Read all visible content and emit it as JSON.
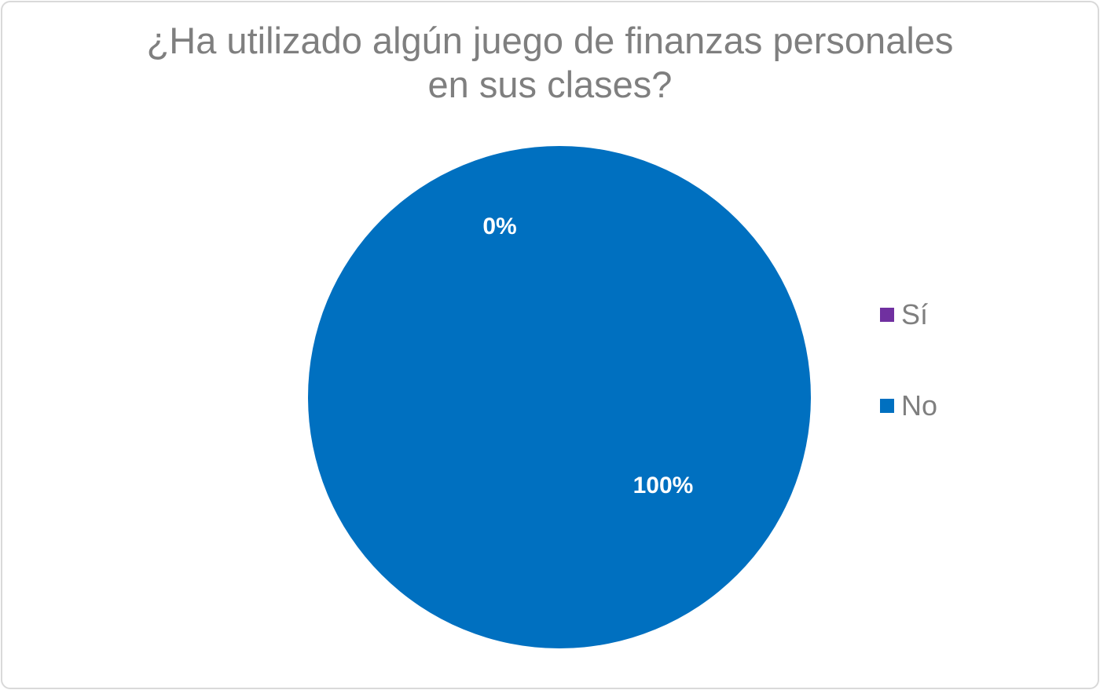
{
  "chart_data": {
    "type": "pie",
    "title_lines": [
      "¿Ha utilizado algún juego de finanzas personales",
      "en sus clases?"
    ],
    "categories": [
      "Sí",
      "No"
    ],
    "values": [
      0,
      100
    ],
    "data_labels": [
      "0%",
      "100%"
    ],
    "colors": [
      "#7030a0",
      "#0070c0"
    ],
    "legend_position": "right"
  }
}
